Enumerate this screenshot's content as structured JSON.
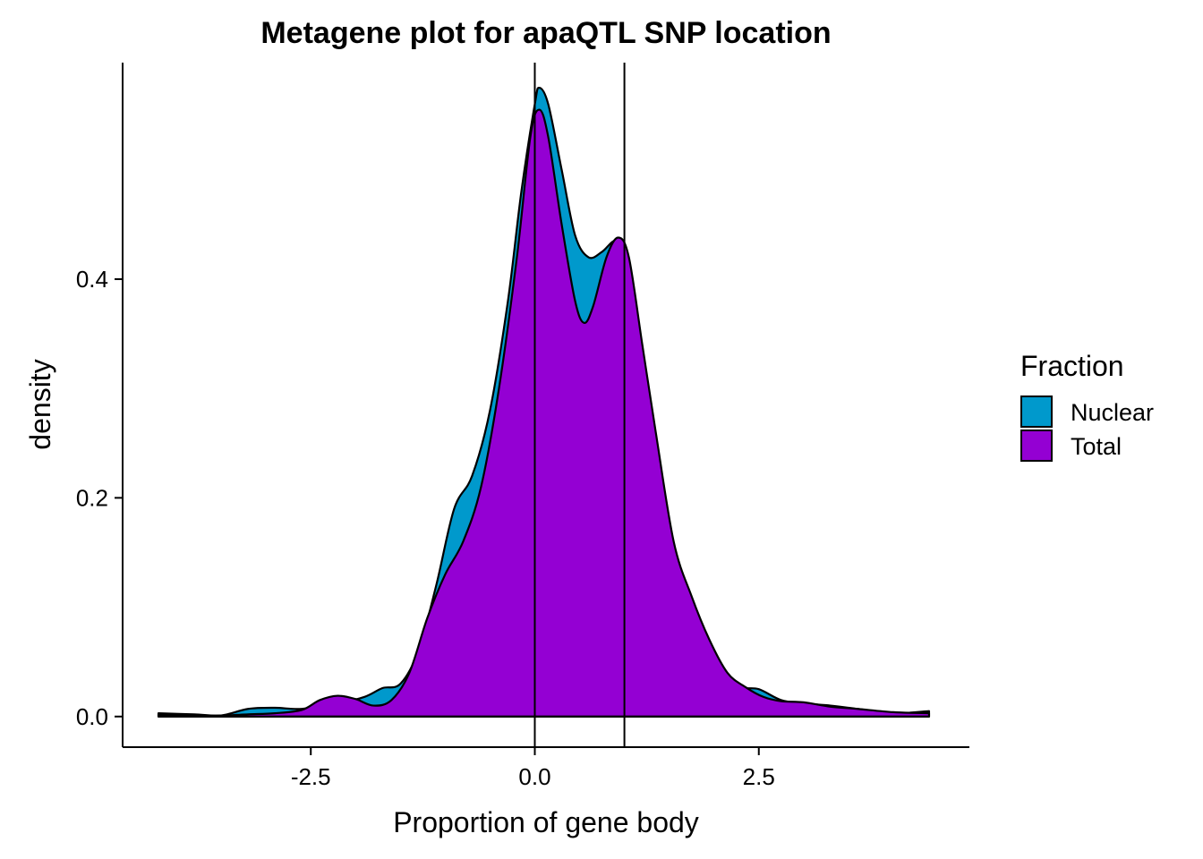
{
  "chart_data": {
    "type": "area",
    "title": "Metagene plot for apaQTL SNP location",
    "xlabel": "Proportion of gene body",
    "ylabel": "density",
    "xlim": [
      -4.6,
      4.85
    ],
    "ylim": [
      -0.028,
      0.598
    ],
    "x_ticks": [
      {
        "value": -2.5,
        "label": "-2.5"
      },
      {
        "value": 0.0,
        "label": "0.0"
      },
      {
        "value": 2.5,
        "label": "2.5"
      }
    ],
    "y_ticks": [
      {
        "value": 0.0,
        "label": "0.0"
      },
      {
        "value": 0.2,
        "label": "0.2"
      },
      {
        "value": 0.4,
        "label": "0.4"
      }
    ],
    "vlines": [
      0,
      1
    ],
    "grid": false,
    "legend": {
      "title": "Fraction",
      "position": "right"
    },
    "series": [
      {
        "name": "Nuclear",
        "color": "#0099CC",
        "points": [
          [
            -4.2,
            0.003
          ],
          [
            -3.8,
            0.002
          ],
          [
            -3.5,
            0.001
          ],
          [
            -3.2,
            0.007
          ],
          [
            -2.9,
            0.008
          ],
          [
            -2.6,
            0.007
          ],
          [
            -2.2,
            0.012
          ],
          [
            -1.9,
            0.018
          ],
          [
            -1.7,
            0.026
          ],
          [
            -1.5,
            0.03
          ],
          [
            -1.3,
            0.06
          ],
          [
            -1.1,
            0.12
          ],
          [
            -0.9,
            0.19
          ],
          [
            -0.7,
            0.22
          ],
          [
            -0.5,
            0.28
          ],
          [
            -0.3,
            0.38
          ],
          [
            -0.15,
            0.48
          ],
          [
            0.0,
            0.56
          ],
          [
            0.05,
            0.575
          ],
          [
            0.15,
            0.56
          ],
          [
            0.3,
            0.5
          ],
          [
            0.45,
            0.44
          ],
          [
            0.6,
            0.42
          ],
          [
            0.75,
            0.425
          ],
          [
            0.9,
            0.435
          ],
          [
            1.0,
            0.42
          ],
          [
            1.15,
            0.34
          ],
          [
            1.3,
            0.26
          ],
          [
            1.5,
            0.16
          ],
          [
            1.7,
            0.11
          ],
          [
            1.9,
            0.07
          ],
          [
            2.1,
            0.04
          ],
          [
            2.3,
            0.027
          ],
          [
            2.5,
            0.025
          ],
          [
            2.75,
            0.015
          ],
          [
            3.0,
            0.012
          ],
          [
            3.3,
            0.01
          ],
          [
            3.6,
            0.007
          ],
          [
            4.0,
            0.003
          ],
          [
            4.4,
            0.005
          ]
        ]
      },
      {
        "name": "Total",
        "color": "#9400D3",
        "points": [
          [
            -4.2,
            0.002
          ],
          [
            -3.8,
            0.001
          ],
          [
            -3.5,
            0.001
          ],
          [
            -3.2,
            0.002
          ],
          [
            -2.9,
            0.003
          ],
          [
            -2.6,
            0.006
          ],
          [
            -2.4,
            0.015
          ],
          [
            -2.2,
            0.019
          ],
          [
            -2.0,
            0.016
          ],
          [
            -1.8,
            0.01
          ],
          [
            -1.6,
            0.015
          ],
          [
            -1.4,
            0.04
          ],
          [
            -1.2,
            0.09
          ],
          [
            -1.0,
            0.13
          ],
          [
            -0.8,
            0.16
          ],
          [
            -0.6,
            0.21
          ],
          [
            -0.4,
            0.3
          ],
          [
            -0.2,
            0.42
          ],
          [
            -0.05,
            0.53
          ],
          [
            0.05,
            0.555
          ],
          [
            0.15,
            0.53
          ],
          [
            0.3,
            0.45
          ],
          [
            0.45,
            0.38
          ],
          [
            0.55,
            0.36
          ],
          [
            0.65,
            0.375
          ],
          [
            0.8,
            0.42
          ],
          [
            0.93,
            0.438
          ],
          [
            1.05,
            0.42
          ],
          [
            1.2,
            0.34
          ],
          [
            1.35,
            0.26
          ],
          [
            1.55,
            0.16
          ],
          [
            1.75,
            0.11
          ],
          [
            1.95,
            0.07
          ],
          [
            2.15,
            0.04
          ],
          [
            2.35,
            0.027
          ],
          [
            2.55,
            0.018
          ],
          [
            2.75,
            0.014
          ],
          [
            3.0,
            0.013
          ],
          [
            3.3,
            0.009
          ],
          [
            3.6,
            0.007
          ],
          [
            4.0,
            0.004
          ],
          [
            4.4,
            0.003
          ]
        ]
      }
    ]
  }
}
